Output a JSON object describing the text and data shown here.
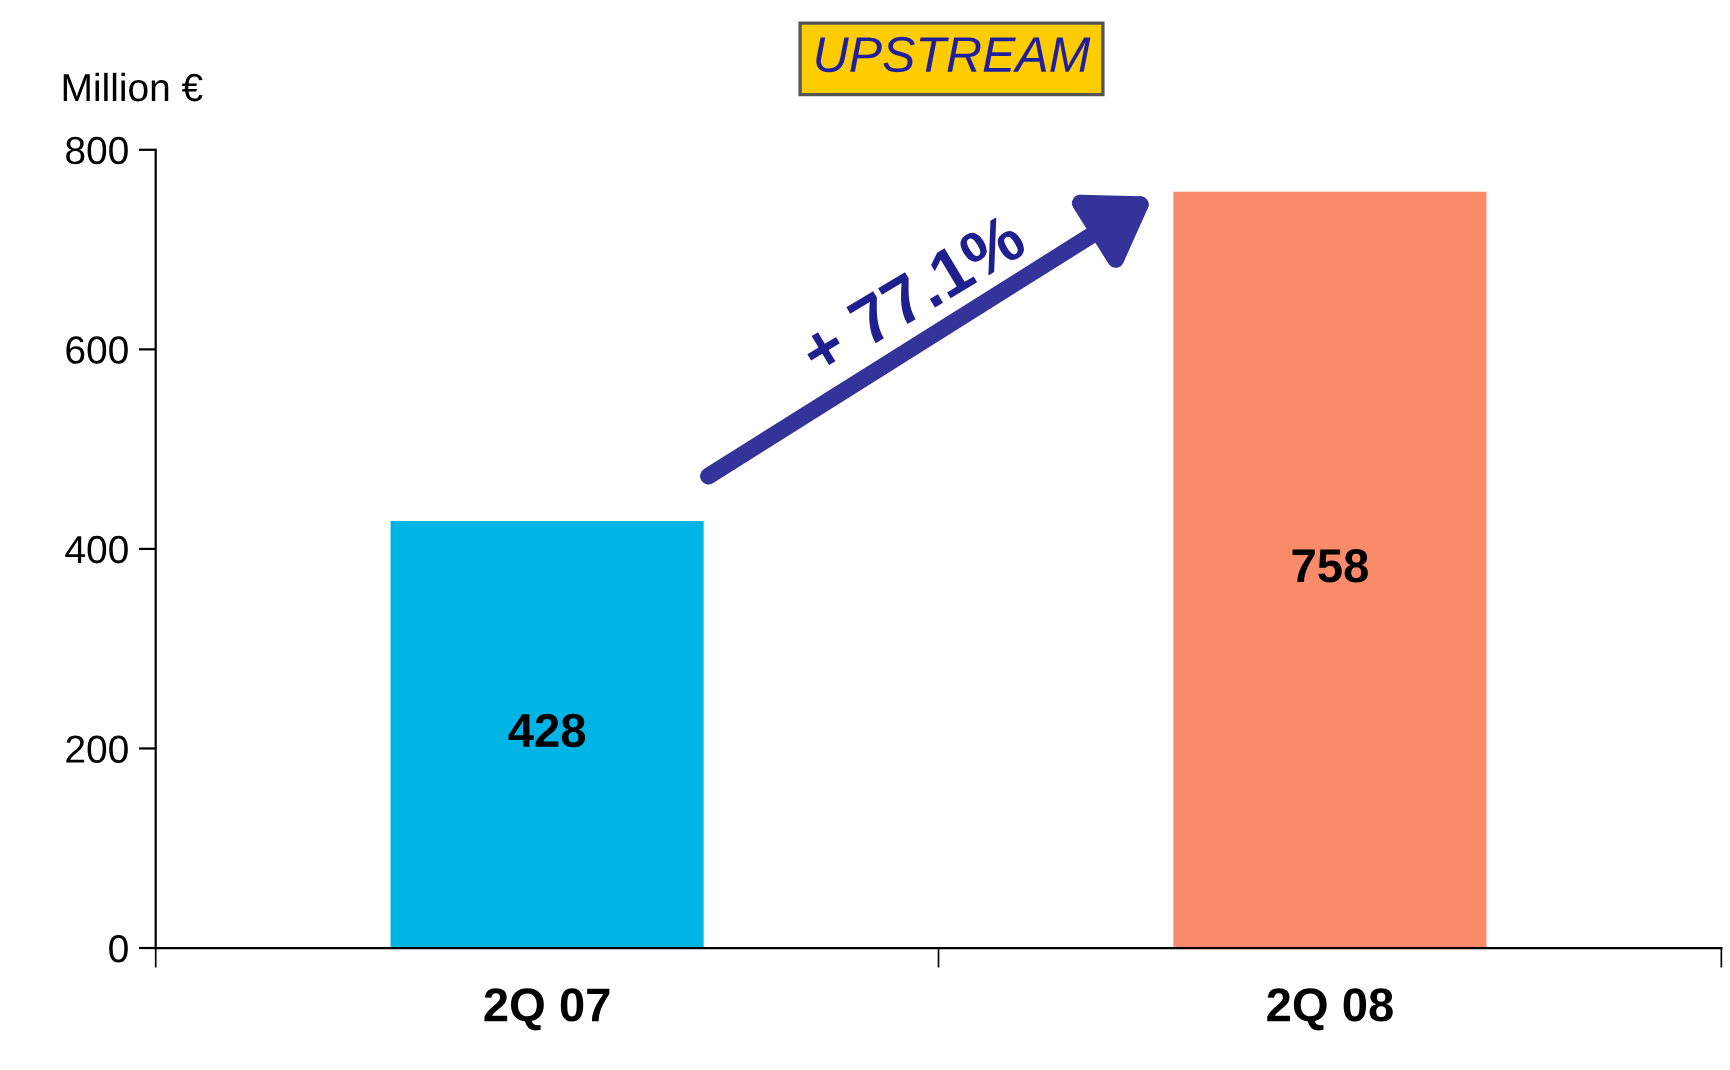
{
  "chart_data": {
    "type": "bar",
    "title": "UPSTREAM",
    "ylabel": "Million €",
    "categories": [
      "2Q 07",
      "2Q 08"
    ],
    "values": [
      428,
      758
    ],
    "colors": [
      "#00b4e6",
      "#f98a6a"
    ],
    "ylim": [
      0,
      800
    ],
    "yticks": [
      0,
      200,
      400,
      600,
      800
    ],
    "data_labels": true,
    "grid": false,
    "legend": false,
    "annotations": [
      "+ 77.1%"
    ]
  }
}
